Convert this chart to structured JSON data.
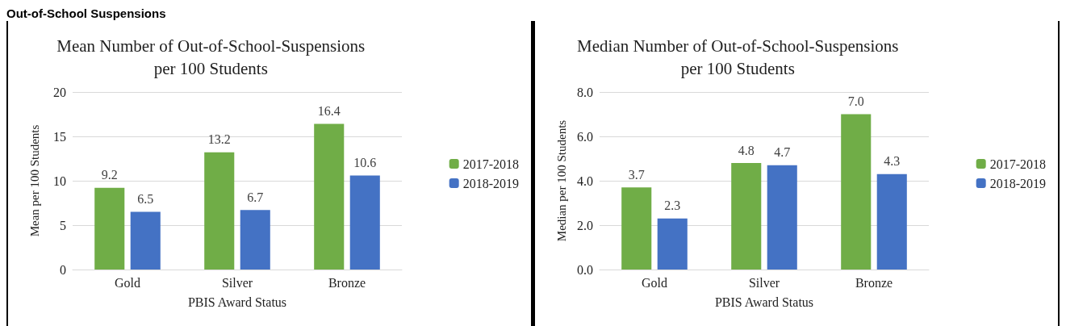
{
  "chart_data": [
    {
      "type": "bar",
      "title": "Mean Number of Out-of-School-Suspensions\nper 100 Students",
      "xlabel": "PBIS Award Status",
      "ylabel": "Mean per 100 Students",
      "annotations": [
        "Out-of-School Suspensions"
      ],
      "categories": [
        "Gold",
        "Silver",
        "Bronze"
      ],
      "series": [
        {
          "name": "2017-2018",
          "color": "#70ad47",
          "values": [
            9.2,
            13.2,
            16.4
          ]
        },
        {
          "name": "2018-2019",
          "color": "#4472c4",
          "values": [
            6.5,
            6.7,
            10.6
          ]
        }
      ],
      "ylim": [
        0,
        20
      ],
      "yticks": [
        0,
        5,
        10,
        15,
        20
      ],
      "grid": "y",
      "legend": "right",
      "data_labels": true
    },
    {
      "type": "bar",
      "title": "Median Number of Out-of-School-Suspensions\nper 100 Students",
      "xlabel": "PBIS Award Status",
      "ylabel": "Median per 100 Students",
      "categories": [
        "Gold",
        "Silver",
        "Bronze"
      ],
      "series": [
        {
          "name": "2017-2018",
          "color": "#70ad47",
          "values": [
            3.7,
            4.8,
            7.0
          ],
          "value_labels": [
            "3.7",
            "4.8",
            "7.0"
          ]
        },
        {
          "name": "2018-2019",
          "color": "#4472c4",
          "values": [
            2.3,
            4.7,
            4.3
          ],
          "value_labels": [
            "2.3",
            "4.7",
            "4.3"
          ]
        }
      ],
      "ylim": [
        0,
        8
      ],
      "yticks": [
        {
          "value": 0,
          "label": "0.0"
        },
        {
          "value": 2,
          "label": "2.0"
        },
        {
          "value": 4,
          "label": "4.0"
        },
        {
          "value": 6,
          "label": "6.0"
        },
        {
          "value": 8,
          "label": "8.0"
        }
      ],
      "grid": "y",
      "legend": "right"
    }
  ]
}
